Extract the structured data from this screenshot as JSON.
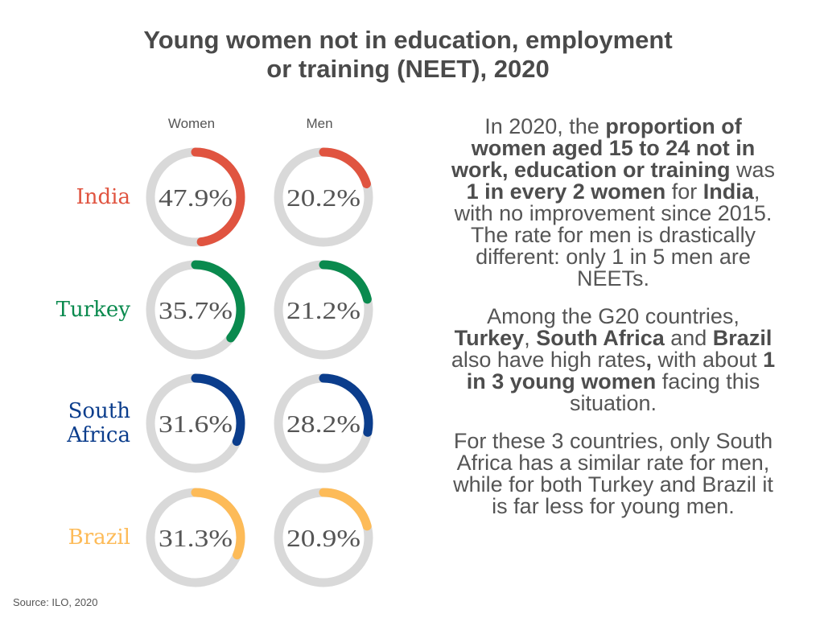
{
  "title_lines": [
    "Young women not in education, employment",
    "or training (NEET), 2020"
  ],
  "chart_data": {
    "type": "donut",
    "title": "Young women not in education, employment or training (NEET), 2020",
    "columns": [
      "Women",
      "Men"
    ],
    "track_color": "#d9d9d9",
    "rows": [
      {
        "country": "India",
        "color": "#e05440",
        "women": 47.9,
        "men": 20.2,
        "women_label": "47.9%",
        "men_label": "20.2%"
      },
      {
        "country": "Turkey",
        "color": "#0a8a4e",
        "women": 35.7,
        "men": 21.2,
        "women_label": "35.7%",
        "men_label": "21.2%"
      },
      {
        "country": "South Africa",
        "color": "#0b3d8c",
        "women": 31.6,
        "men": 28.2,
        "women_label": "31.6%",
        "men_label": "28.2%"
      },
      {
        "country": "Brazil",
        "color": "#fdbb58",
        "women": 31.3,
        "men": 20.9,
        "women_label": "31.3%",
        "men_label": "20.9%"
      }
    ],
    "ylim": [
      0,
      100
    ]
  },
  "paragraphs": [
    [
      {
        "t": "In 2020, the ",
        "b": false
      },
      {
        "t": "proportion of women aged 15 to 24 not in work, education or training",
        "b": true
      },
      {
        "t": " was ",
        "b": false
      },
      {
        "t": "1 in every 2 women",
        "b": true
      },
      {
        "t": " for ",
        "b": false
      },
      {
        "t": "India",
        "b": true
      },
      {
        "t": ", with no improvement since 2015. The rate for men is drastically different: only 1 in 5 men are NEETs.",
        "b": false
      }
    ],
    [
      {
        "t": "Among the G20 countries, ",
        "b": false
      },
      {
        "t": "Turkey",
        "b": true
      },
      {
        "t": ", ",
        "b": false
      },
      {
        "t": "South Africa",
        "b": true
      },
      {
        "t": " and ",
        "b": false
      },
      {
        "t": "Brazil",
        "b": true
      },
      {
        "t": " also have high rates",
        "b": false
      },
      {
        "t": ",",
        "b": true
      },
      {
        "t": " with about ",
        "b": false
      },
      {
        "t": "1 in 3 young women",
        "b": true
      },
      {
        "t": " facing this situation.",
        "b": false
      }
    ],
    [
      {
        "t": "For these 3 countries, only South Africa has a similar rate for men, while for both Turkey and Brazil it is far less for young men.",
        "b": false
      }
    ]
  ],
  "source": "Source: ILO, 2020"
}
